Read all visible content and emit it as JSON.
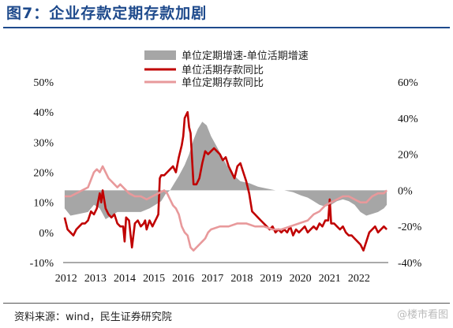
{
  "figure": {
    "title": "图7：企业存款定期存款加剧",
    "source": "资料来源：wind，民生证券研究院",
    "watermark": "@楼市看图"
  },
  "colors": {
    "title": "#1e4a8c",
    "area": "#a6a6a6",
    "current": "#c00000",
    "fixed": "#e8999b"
  },
  "chart_data": {
    "type": "line",
    "grid": false,
    "legend_position": "top-right",
    "x_ticks": [
      "2012",
      "2013",
      "2014",
      "2015",
      "2016",
      "2017",
      "2018",
      "2019",
      "2020",
      "2021",
      "2022"
    ],
    "x_range": [
      2011.95,
      2023.05
    ],
    "y_left": {
      "ticks": [
        "50%",
        "40%",
        "30%",
        "20%",
        "10%",
        "0%",
        "-10%"
      ],
      "range": [
        -10,
        50
      ]
    },
    "y_right": {
      "ticks": [
        "60%",
        "40%",
        "20%",
        "0%",
        "-20%",
        "-40%"
      ],
      "range": [
        -40,
        60
      ]
    },
    "series": [
      {
        "name": "单位定期增速-单位活期增速",
        "type": "area",
        "axis": "right",
        "x": [
          2012.0,
          2012.2,
          2012.5,
          2012.8,
          2013.0,
          2013.2,
          2013.4,
          2013.6,
          2013.8,
          2014.0,
          2014.3,
          2014.6,
          2014.9,
          2015.1,
          2015.3,
          2015.45,
          2015.6,
          2015.75,
          2015.9,
          2016.1,
          2016.25,
          2016.4,
          2016.55,
          2016.7,
          2016.85,
          2017.0,
          2017.2,
          2017.4,
          2017.6,
          2017.8,
          2018.0,
          2018.3,
          2018.6,
          2018.9,
          2019.2,
          2019.5,
          2019.8,
          2020.1,
          2020.3,
          2020.5,
          2020.7,
          2020.9,
          2021.1,
          2021.3,
          2021.5,
          2021.7,
          2021.9,
          2022.1,
          2022.3,
          2022.5,
          2022.7,
          2022.9,
          2023.0
        ],
        "values": [
          -10,
          -14,
          -13,
          -12,
          -8,
          -10,
          -16,
          -14,
          -12,
          -12,
          -12,
          -12,
          -10,
          -8,
          -6,
          -2,
          0,
          4,
          8,
          14,
          20,
          28,
          34,
          38,
          36,
          30,
          24,
          18,
          12,
          8,
          5,
          4,
          2,
          1,
          0,
          0,
          -1,
          -3,
          -4,
          -6,
          -8,
          -9,
          -8,
          -6,
          -5,
          -6,
          -8,
          -12,
          -14,
          -13,
          -12,
          -10,
          -8
        ]
      },
      {
        "name": "单位活期存款同比",
        "type": "line",
        "axis": "left",
        "x": [
          2012.0,
          2012.1,
          2012.2,
          2012.3,
          2012.4,
          2012.5,
          2012.6,
          2012.7,
          2012.8,
          2012.9,
          2013.0,
          2013.1,
          2013.2,
          2013.25,
          2013.3,
          2013.4,
          2013.5,
          2013.6,
          2013.7,
          2013.8,
          2013.9,
          2014.0,
          2014.05,
          2014.1,
          2014.2,
          2014.3,
          2014.4,
          2014.5,
          2014.6,
          2014.7,
          2014.75,
          2014.8,
          2014.9,
          2015.0,
          2015.1,
          2015.15,
          2015.2,
          2015.25,
          2015.3,
          2015.4,
          2015.5,
          2015.6,
          2015.7,
          2015.8,
          2015.9,
          2016.0,
          2016.05,
          2016.1,
          2016.2,
          2016.25,
          2016.3,
          2016.4,
          2016.5,
          2016.6,
          2016.7,
          2016.8,
          2016.9,
          2017.0,
          2017.1,
          2017.2,
          2017.3,
          2017.4,
          2017.5,
          2017.6,
          2017.7,
          2017.8,
          2017.9,
          2018.0,
          2018.1,
          2018.2,
          2018.3,
          2018.4,
          2018.5,
          2018.6,
          2018.7,
          2018.8,
          2018.9,
          2019.0,
          2019.1,
          2019.2,
          2019.3,
          2019.4,
          2019.5,
          2019.6,
          2019.7,
          2019.8,
          2019.9,
          2020.0,
          2020.1,
          2020.2,
          2020.3,
          2020.4,
          2020.5,
          2020.6,
          2020.7,
          2020.8,
          2020.9,
          2021.0,
          2021.05,
          2021.1,
          2021.2,
          2021.3,
          2021.4,
          2021.5,
          2021.6,
          2021.7,
          2021.8,
          2021.9,
          2022.0,
          2022.1,
          2022.2,
          2022.3,
          2022.4,
          2022.5,
          2022.6,
          2022.7,
          2022.8,
          2022.9,
          2023.0
        ],
        "values": [
          5,
          1,
          0,
          -1,
          1,
          2,
          3,
          3,
          4,
          7,
          6,
          8,
          13,
          10,
          14,
          8,
          6,
          5,
          6,
          3,
          2,
          2,
          -3,
          5,
          4,
          -5,
          3,
          4,
          2,
          3,
          4,
          1,
          4,
          2,
          4,
          5,
          6,
          18,
          19,
          19,
          20,
          21,
          22,
          20,
          25,
          29,
          32,
          38,
          40,
          35,
          33,
          16,
          16,
          18,
          23,
          27,
          26,
          27,
          28,
          27,
          26,
          24,
          25,
          22,
          20,
          18,
          22,
          23,
          20,
          17,
          13,
          7,
          6,
          5,
          4,
          3,
          2,
          1,
          2,
          0,
          1,
          0,
          1,
          0,
          2,
          -1,
          1,
          0,
          1,
          2,
          0,
          1,
          2,
          1,
          3,
          2,
          4,
          4,
          11,
          3,
          3,
          2,
          1,
          2,
          0,
          -1,
          -1,
          -2,
          -3,
          -4,
          -6,
          -3,
          0,
          1,
          2,
          0,
          1,
          2,
          1
        ]
      },
      {
        "name": "单位定期存款同比",
        "type": "line",
        "axis": "left",
        "x": [
          2012.0,
          2012.2,
          2012.4,
          2012.6,
          2012.8,
          2013.0,
          2013.1,
          2013.2,
          2013.3,
          2013.4,
          2013.5,
          2013.6,
          2013.7,
          2013.8,
          2013.9,
          2014.0,
          2014.2,
          2014.4,
          2014.6,
          2014.8,
          2015.0,
          2015.2,
          2015.4,
          2015.5,
          2015.6,
          2015.7,
          2015.8,
          2015.9,
          2016.0,
          2016.1,
          2016.2,
          2016.3,
          2016.4,
          2016.5,
          2016.6,
          2016.7,
          2016.8,
          2016.9,
          2017.0,
          2017.3,
          2017.6,
          2017.9,
          2018.2,
          2018.5,
          2018.8,
          2019.1,
          2019.4,
          2019.7,
          2020.0,
          2020.3,
          2020.5,
          2020.7,
          2020.9,
          2021.1,
          2021.3,
          2021.5,
          2021.7,
          2021.9,
          2022.1,
          2022.3,
          2022.5,
          2022.7,
          2022.9,
          2023.0
        ],
        "values": [
          12,
          12,
          13,
          14,
          15,
          20,
          21,
          20,
          22,
          20,
          18,
          17,
          16,
          15,
          16,
          15,
          13,
          12,
          12,
          11,
          12,
          13,
          14,
          13,
          11,
          9,
          8,
          6,
          2,
          0,
          -1,
          -5,
          -6,
          -5,
          -4,
          -3,
          -2,
          0,
          1,
          2,
          2,
          3,
          3,
          2,
          2,
          1,
          1,
          2,
          3,
          4,
          6,
          7,
          9,
          10,
          11,
          12,
          12,
          11,
          10,
          10,
          12,
          13,
          13,
          14
        ]
      }
    ]
  }
}
